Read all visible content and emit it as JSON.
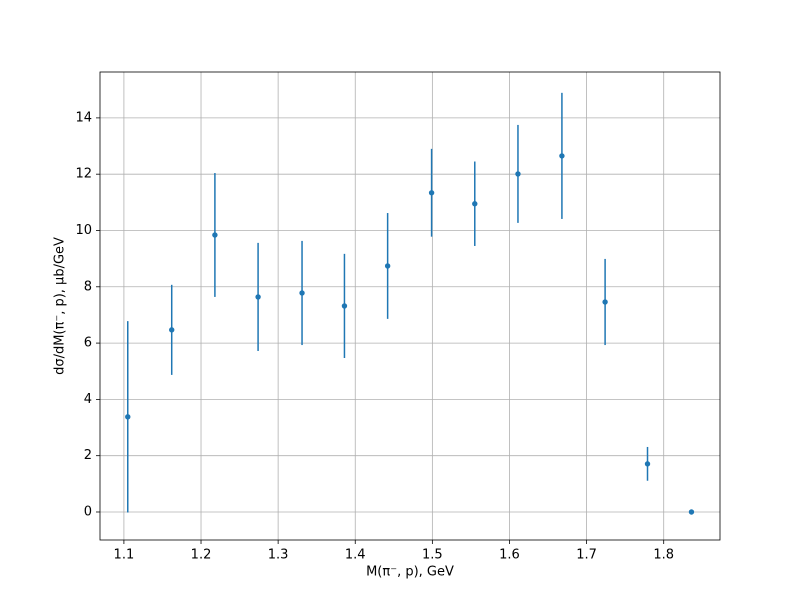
{
  "chart_data": {
    "type": "errorbar",
    "xlabel": "M(π⁻, p), GeV",
    "ylabel": "dσ/dM(π⁻, p), μb/GeV",
    "x": [
      1.105,
      1.162,
      1.218,
      1.274,
      1.331,
      1.386,
      1.442,
      1.499,
      1.555,
      1.611,
      1.668,
      1.724,
      1.779,
      1.836
    ],
    "values": [
      3.38,
      6.47,
      9.84,
      7.64,
      7.78,
      7.32,
      8.74,
      11.34,
      10.95,
      12.01,
      12.65,
      7.46,
      1.71,
      0
    ],
    "errors": [
      3.4,
      1.6,
      2.2,
      1.92,
      1.85,
      1.85,
      1.88,
      1.56,
      1.5,
      1.74,
      2.24,
      1.53,
      0.6,
      0
    ],
    "color": "#1f77b4",
    "xlim": [
      1.069,
      1.873
    ],
    "ylim": [
      -0.995,
      15.63
    ],
    "xticks": [
      1.1,
      1.2,
      1.3,
      1.4,
      1.5,
      1.6,
      1.7,
      1.8
    ],
    "yticks": [
      0,
      2,
      4,
      6,
      8,
      10,
      12,
      14
    ],
    "grid": true
  }
}
